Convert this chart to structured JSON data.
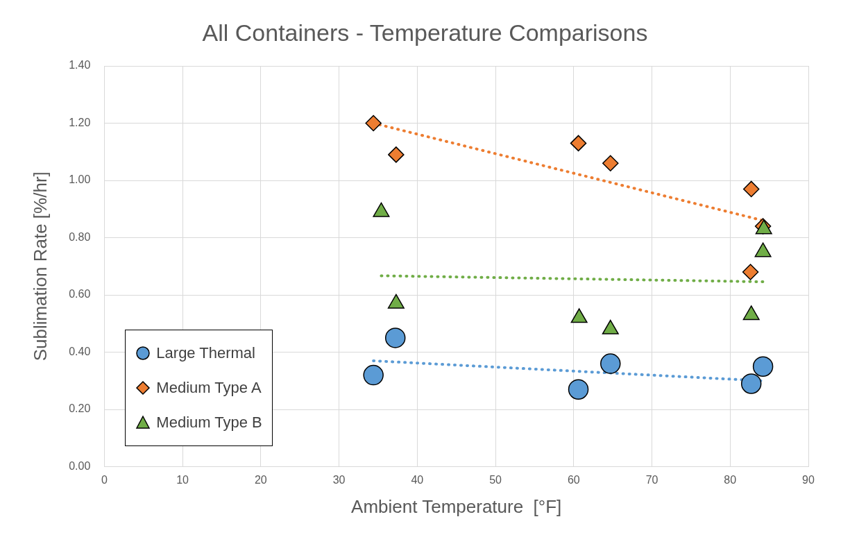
{
  "chart_data": {
    "type": "scatter",
    "title": "All Containers - Temperature Comparisons",
    "xlabel": "Ambient Temperature  [°F]",
    "ylabel": "Sublimation Rate [%/hr]",
    "xlim": [
      0,
      90
    ],
    "xticks": [
      0,
      10,
      20,
      30,
      40,
      50,
      60,
      70,
      80,
      90
    ],
    "ylim": [
      0,
      1.4
    ],
    "yticks": [
      {
        "value": 0,
        "label": "0.00"
      },
      {
        "value": 0.2,
        "label": "0.20"
      },
      {
        "value": 0.4,
        "label": "0.40"
      },
      {
        "value": 0.6,
        "label": "0.60"
      },
      {
        "value": 0.8,
        "label": "0.80"
      },
      {
        "value": 1.0,
        "label": "1.00"
      },
      {
        "value": 1.2,
        "label": "1.20"
      },
      {
        "value": 1.4,
        "label": "1.40"
      }
    ],
    "grid": true,
    "legend": "bottom left",
    "series": [
      {
        "name": "Large Thermal",
        "color": "#5b9bd5",
        "marker": "circle",
        "x": [
          34.4,
          37.2,
          60.6,
          64.7,
          82.7,
          84.2
        ],
        "values": [
          0.32,
          0.45,
          0.27,
          0.36,
          0.29,
          0.35
        ]
      },
      {
        "name": "Medium Type A",
        "color": "#ed7d31",
        "marker": "diamond",
        "x": [
          34.4,
          37.3,
          60.6,
          64.7,
          82.7,
          84.2,
          82.6
        ],
        "values": [
          1.2,
          1.09,
          1.13,
          1.06,
          0.97,
          0.84,
          0.68
        ]
      },
      {
        "name": "Medium Type B",
        "color": "#70ad47",
        "marker": "triangle",
        "x": [
          35.4,
          37.3,
          60.7,
          64.7,
          82.7,
          84.2,
          84.3
        ],
        "values": [
          0.89,
          0.57,
          0.52,
          0.48,
          0.53,
          0.75,
          0.83
        ]
      },
      {
        "type": "line",
        "color": "#5b9bd5",
        "marker": "none",
        "line_style": "dotted",
        "x": [
          34.4,
          84.2
        ],
        "values": [
          0.37,
          0.3
        ]
      },
      {
        "type": "line",
        "color": "#ed7d31",
        "marker": "none",
        "line_style": "dotted",
        "x": [
          34.4,
          84.2
        ],
        "values": [
          1.2,
          0.86
        ]
      },
      {
        "type": "line",
        "color": "#70ad47",
        "marker": "none",
        "line_style": "dotted",
        "x": [
          35.4,
          84.2
        ],
        "values": [
          0.667,
          0.646
        ]
      }
    ]
  }
}
